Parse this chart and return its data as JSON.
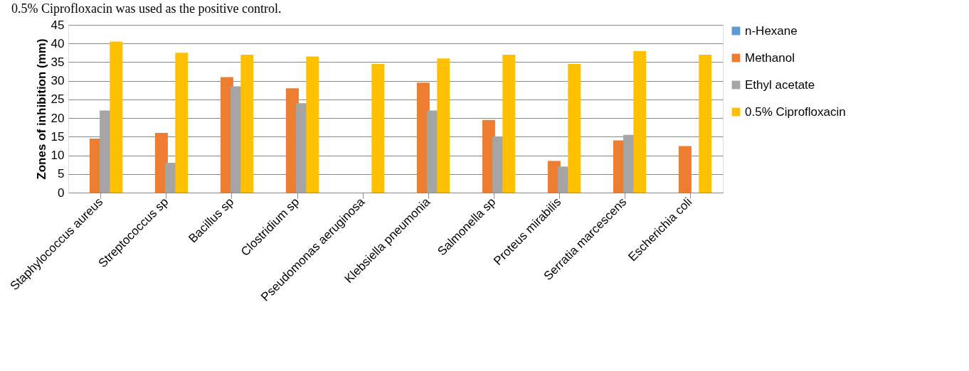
{
  "chart_data": {
    "type": "bar",
    "annotations": [
      "0.5% Ciprofloxacin was used as the positive control."
    ],
    "ylabel": "Zones of inhibition (mm)",
    "categories": [
      "Staphylococcus aureus",
      "Streptococcus sp",
      "Bacillus sp",
      "Clostridium sp",
      "Pseudomonas aeruginosa",
      "Klebsiella pneumonia",
      "Salmonella sp",
      "Proteus mirabilis",
      "Serratia marcescens",
      "Escherichia coli"
    ],
    "series": [
      {
        "name": "n-Hexane",
        "color": "#5b9bd5",
        "values": [
          0,
          0,
          0,
          0,
          0,
          0,
          0,
          0,
          0,
          0
        ]
      },
      {
        "name": "Methanol",
        "color": "#ed7d31",
        "values": [
          14.5,
          16,
          31,
          28,
          0,
          29.5,
          19.5,
          8.5,
          14,
          12.5
        ]
      },
      {
        "name": "Ethyl acetate",
        "color": "#a5a5a5",
        "values": [
          22,
          8,
          28.5,
          24,
          0,
          22,
          15,
          7,
          15.5,
          0
        ]
      },
      {
        "name": "0.5% Ciprofloxacin",
        "color": "#ffc000",
        "values": [
          40.5,
          37.5,
          37,
          36.5,
          34.5,
          36,
          37,
          34.5,
          38,
          37
        ]
      }
    ],
    "ylim": [
      0,
      45
    ],
    "yticks": [
      0,
      5,
      10,
      15,
      20,
      25,
      30,
      35,
      40,
      45
    ],
    "grid": "y",
    "legend": "right"
  }
}
